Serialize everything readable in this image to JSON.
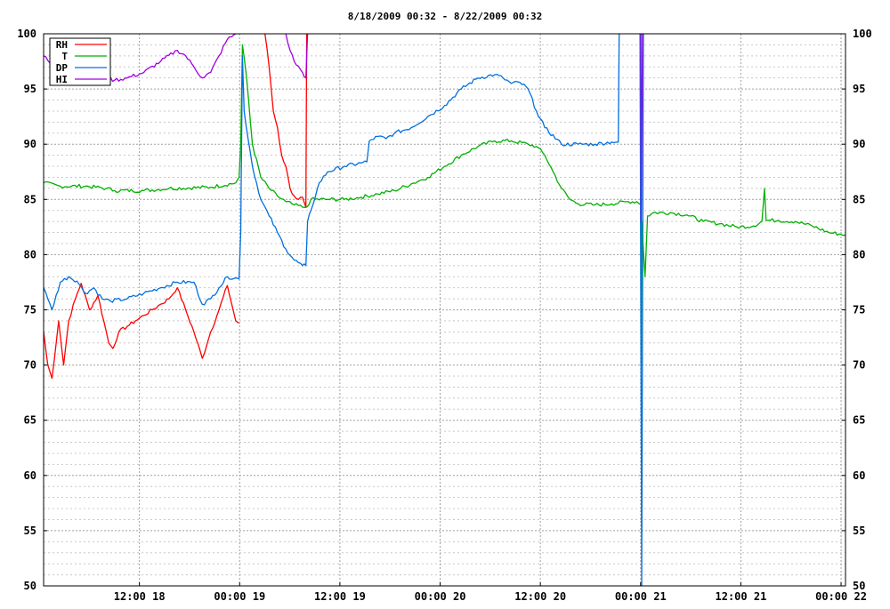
{
  "chart_data": {
    "type": "line",
    "title": "8/18/2009 00:32 - 8/22/2009 00:32",
    "xlabel": "",
    "ylabel": "",
    "ylim": [
      50,
      100
    ],
    "xlim_hours": [
      0,
      96
    ],
    "y_ticks": [
      "50",
      "55",
      "60",
      "65",
      "70",
      "75",
      "80",
      "85",
      "90",
      "95",
      "100"
    ],
    "x_ticks": [
      {
        "hour": 11.47,
        "label": "12:00 18"
      },
      {
        "hour": 23.47,
        "label": "00:00 19"
      },
      {
        "hour": 35.47,
        "label": "12:00 19"
      },
      {
        "hour": 47.47,
        "label": "00:00 20"
      },
      {
        "hour": 59.47,
        "label": "12:00 20"
      },
      {
        "hour": 71.47,
        "label": "00:00 21"
      },
      {
        "hour": 83.47,
        "label": "12:00 21"
      },
      {
        "hour": 95.47,
        "label": "00:00 22"
      }
    ],
    "grid": true,
    "legend_position": "top-left",
    "series": [
      {
        "name": "RH",
        "color": "#ff0000",
        "points": [
          [
            0,
            73
          ],
          [
            0.5,
            70
          ],
          [
            1,
            68.8
          ],
          [
            1.8,
            74
          ],
          [
            2.4,
            70
          ],
          [
            3,
            74
          ],
          [
            3.8,
            76
          ],
          [
            4.5,
            77.4
          ],
          [
            5.5,
            75
          ],
          [
            6.5,
            76.3
          ],
          [
            7.2,
            74
          ],
          [
            7.8,
            72
          ],
          [
            8.3,
            71.5
          ],
          [
            9,
            73
          ],
          [
            10,
            73.5
          ],
          [
            11,
            74
          ],
          [
            12,
            74.5
          ],
          [
            13,
            75
          ],
          [
            14,
            75.5
          ],
          [
            15,
            76
          ],
          [
            16,
            77
          ],
          [
            17,
            75
          ],
          [
            18,
            73
          ],
          [
            19,
            70.6
          ],
          [
            20,
            73
          ],
          [
            21,
            75
          ],
          [
            22,
            77.2
          ],
          [
            23,
            74
          ],
          [
            23.4,
            73.8
          ],
          [
            null,
            null
          ],
          [
            26.5,
            100
          ],
          [
            27,
            97
          ],
          [
            27.5,
            93
          ],
          [
            28,
            91.5
          ],
          [
            28.5,
            89
          ],
          [
            29,
            88
          ],
          [
            29.5,
            86
          ],
          [
            30,
            85.3
          ],
          [
            30.5,
            85
          ],
          [
            31,
            85.2
          ],
          [
            31.3,
            84.5
          ],
          [
            31.4,
            84.3
          ],
          [
            31.5,
            100
          ]
        ]
      },
      {
        "name": "T",
        "color": "#00b000",
        "points": [
          [
            0,
            86.5
          ],
          [
            2,
            86.2
          ],
          [
            5,
            86.2
          ],
          [
            7.5,
            86
          ],
          [
            8.5,
            85.8
          ],
          [
            12,
            85.8
          ],
          [
            15,
            86
          ],
          [
            20,
            86.1
          ],
          [
            23,
            86.5
          ],
          [
            23.4,
            87
          ],
          [
            23.6,
            90
          ],
          [
            23.8,
            99
          ],
          [
            24.3,
            96
          ],
          [
            25,
            90
          ],
          [
            26,
            87
          ],
          [
            27,
            86
          ],
          [
            28,
            85.3
          ],
          [
            29,
            84.8
          ],
          [
            30,
            84.5
          ],
          [
            31,
            84.3
          ],
          [
            31.5,
            84.3
          ],
          [
            32,
            85
          ],
          [
            34,
            85
          ],
          [
            36,
            85
          ],
          [
            38,
            85.2
          ],
          [
            40,
            85.5
          ],
          [
            42,
            85.8
          ],
          [
            44,
            86.4
          ],
          [
            45,
            86.7
          ],
          [
            46,
            87
          ],
          [
            48,
            88
          ],
          [
            50,
            89
          ],
          [
            52,
            89.8
          ],
          [
            54,
            90.3
          ],
          [
            56,
            90.3
          ],
          [
            58,
            90
          ],
          [
            59,
            89.8
          ],
          [
            60,
            89
          ],
          [
            61,
            87.5
          ],
          [
            62,
            86
          ],
          [
            63,
            85
          ],
          [
            64,
            84.6
          ],
          [
            66,
            84.5
          ],
          [
            68,
            84.6
          ],
          [
            70,
            84.8
          ],
          [
            71,
            84.8
          ],
          [
            71.5,
            84.5
          ],
          [
            71.55,
            70
          ],
          [
            71.6,
            83
          ],
          [
            72,
            78
          ],
          [
            72.3,
            83.5
          ],
          [
            73,
            83.8
          ],
          [
            75,
            83.8
          ],
          [
            77,
            83.6
          ],
          [
            79,
            83
          ],
          [
            81,
            82.8
          ],
          [
            83,
            82.5
          ],
          [
            85,
            82.6
          ],
          [
            86,
            83
          ],
          [
            86.3,
            86
          ],
          [
            86.5,
            83.1
          ],
          [
            88,
            83.1
          ],
          [
            90,
            83
          ],
          [
            92,
            82.6
          ],
          [
            94,
            82
          ],
          [
            96,
            81.8
          ]
        ]
      },
      {
        "name": "DP",
        "color": "#0070e0",
        "points": [
          [
            0,
            77
          ],
          [
            0.5,
            76
          ],
          [
            1,
            75
          ],
          [
            2,
            77.5
          ],
          [
            3,
            78
          ],
          [
            4,
            77.6
          ],
          [
            5,
            76.5
          ],
          [
            6,
            77
          ],
          [
            7,
            76
          ],
          [
            8,
            75.8
          ],
          [
            10,
            76
          ],
          [
            12,
            76.5
          ],
          [
            14,
            77
          ],
          [
            16,
            77.5
          ],
          [
            18,
            77.5
          ],
          [
            19,
            75.5
          ],
          [
            20,
            76
          ],
          [
            21,
            77
          ],
          [
            22,
            78
          ],
          [
            23.4,
            77.8
          ],
          [
            23.6,
            82
          ],
          [
            23.8,
            98
          ],
          [
            24,
            93
          ],
          [
            25,
            88
          ],
          [
            26,
            85
          ],
          [
            27,
            83.5
          ],
          [
            28,
            82
          ],
          [
            29,
            80.5
          ],
          [
            30,
            79.5
          ],
          [
            31,
            79
          ],
          [
            31.4,
            79
          ],
          [
            31.6,
            83
          ],
          [
            32,
            84
          ],
          [
            33,
            86.5
          ],
          [
            34,
            87.5
          ],
          [
            36,
            88
          ],
          [
            38,
            88.3
          ],
          [
            38.7,
            88.4
          ],
          [
            39,
            90.3
          ],
          [
            40,
            90.7
          ],
          [
            41,
            90.5
          ],
          [
            42,
            91
          ],
          [
            44,
            91.5
          ],
          [
            46,
            92.5
          ],
          [
            48,
            93.5
          ],
          [
            50,
            95
          ],
          [
            52,
            96
          ],
          [
            54,
            96.3
          ],
          [
            55,
            96
          ],
          [
            56,
            95.5
          ],
          [
            57,
            95.6
          ],
          [
            58,
            95
          ],
          [
            59,
            93
          ],
          [
            60,
            91.5
          ],
          [
            62,
            90
          ],
          [
            64,
            90
          ],
          [
            66,
            90
          ],
          [
            68,
            90.2
          ],
          [
            68.8,
            90.2
          ],
          [
            68.9,
            100
          ],
          [
            null,
            null
          ],
          [
            71.4,
            100
          ],
          [
            71.6,
            50
          ],
          [
            71.8,
            100
          ]
        ]
      },
      {
        "name": "HI",
        "color": "#a000e0",
        "points": [
          [
            0,
            98
          ],
          [
            0.8,
            97.3
          ],
          [
            1.5,
            98
          ],
          [
            2,
            97.5
          ],
          [
            3,
            98.5
          ],
          [
            4,
            99
          ],
          [
            4.8,
            98.5
          ],
          [
            5.5,
            99
          ],
          [
            6.5,
            98.5
          ],
          [
            7,
            97
          ],
          [
            7.5,
            96
          ],
          [
            8.5,
            95.8
          ],
          [
            10,
            96
          ],
          [
            12,
            96.5
          ],
          [
            14,
            97.5
          ],
          [
            16,
            98.5
          ],
          [
            17,
            98
          ],
          [
            18,
            97
          ],
          [
            19,
            96
          ],
          [
            20,
            96.5
          ],
          [
            21,
            98
          ],
          [
            22,
            99.5
          ],
          [
            23,
            100
          ],
          [
            null,
            null
          ],
          [
            29,
            100
          ],
          [
            29.5,
            98.5
          ],
          [
            30,
            97.5
          ],
          [
            31,
            96.5
          ],
          [
            31.4,
            96
          ],
          [
            31.6,
            100
          ],
          [
            null,
            null
          ],
          [
            71.5,
            100
          ],
          [
            71.55,
            83
          ],
          [
            71.7,
            100
          ]
        ]
      }
    ]
  }
}
